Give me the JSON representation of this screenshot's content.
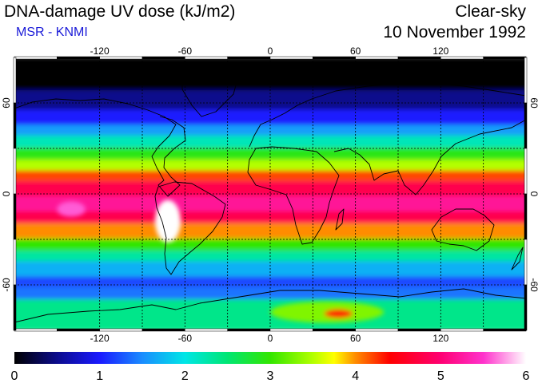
{
  "header": {
    "title": "DNA-damage UV dose (kJ/m2)",
    "source": "MSR - KNMI",
    "condition": "Clear-sky",
    "date": "10 November 1992"
  },
  "map": {
    "projection": "equirectangular",
    "lon_range": [
      -180,
      180
    ],
    "lat_range": [
      -90,
      90
    ],
    "lon_ticks": [
      "-120",
      "-60",
      "0",
      "60",
      "120"
    ],
    "lat_ticks": [
      "60",
      "0",
      "-60"
    ],
    "right_lat_ticks": [
      "60",
      "0",
      "-60"
    ],
    "gridlines": "dashed",
    "gridline_lats": [
      60,
      30,
      0,
      -30,
      -60
    ],
    "gridline_lons": [
      -120,
      -90,
      -60,
      -30,
      0,
      30,
      60,
      90,
      120,
      150
    ],
    "bands": [
      {
        "lat_from": 90,
        "lat_to": 68,
        "value": 0.0
      },
      {
        "lat_from": 68,
        "lat_to": 55,
        "value": 0.5
      },
      {
        "lat_from": 55,
        "lat_to": 45,
        "value": 1.0
      },
      {
        "lat_from": 45,
        "lat_to": 38,
        "value": 1.6
      },
      {
        "lat_from": 38,
        "lat_to": 30,
        "value": 2.2
      },
      {
        "lat_from": 30,
        "lat_to": 22,
        "value": 2.9
      },
      {
        "lat_from": 22,
        "lat_to": 15,
        "value": 3.5
      },
      {
        "lat_from": 15,
        "lat_to": 8,
        "value": 4.2
      },
      {
        "lat_from": 8,
        "lat_to": -2,
        "value": 4.8
      },
      {
        "lat_from": -2,
        "lat_to": -12,
        "value": 5.2
      },
      {
        "lat_from": -12,
        "lat_to": -20,
        "value": 4.8
      },
      {
        "lat_from": -20,
        "lat_to": -30,
        "value": 4.0
      },
      {
        "lat_from": -30,
        "lat_to": -38,
        "value": 3.0
      },
      {
        "lat_from": -38,
        "lat_to": -45,
        "value": 2.3
      },
      {
        "lat_from": -45,
        "lat_to": -55,
        "value": 1.7
      },
      {
        "lat_from": -55,
        "lat_to": -62,
        "value": 1.2
      },
      {
        "lat_from": -62,
        "lat_to": -70,
        "value": 1.4
      },
      {
        "lat_from": -70,
        "lat_to": -90,
        "value": 2.4
      }
    ],
    "hotspots": [
      {
        "lon": -72,
        "lat": -18,
        "rx": 9,
        "ry": 14,
        "value": 6.0
      },
      {
        "lon": -140,
        "lat": -10,
        "rx": 10,
        "ry": 5,
        "value": 5.6
      },
      {
        "lon": 40,
        "lat": -78,
        "rx": 40,
        "ry": 7,
        "value": 3.3
      },
      {
        "lon": 48,
        "lat": -79,
        "rx": 10,
        "ry": 3,
        "value": 4.3
      }
    ]
  },
  "colorbar": {
    "min": 0,
    "max": 6,
    "tick_labels": [
      "0",
      "1",
      "2",
      "3",
      "4",
      "5",
      "6"
    ],
    "stops": [
      {
        "value": 0.0,
        "color": "#000000"
      },
      {
        "value": 0.5,
        "color": "#0b0b8c"
      },
      {
        "value": 1.0,
        "color": "#1a1aff"
      },
      {
        "value": 1.5,
        "color": "#1a8cff"
      },
      {
        "value": 2.0,
        "color": "#00e6e6"
      },
      {
        "value": 2.5,
        "color": "#00e673"
      },
      {
        "value": 3.0,
        "color": "#33e600"
      },
      {
        "value": 3.5,
        "color": "#b3ff00"
      },
      {
        "value": 3.75,
        "color": "#ffff00"
      },
      {
        "value": 4.0,
        "color": "#ff8c00"
      },
      {
        "value": 4.4,
        "color": "#ff0000"
      },
      {
        "value": 5.0,
        "color": "#ff0073"
      },
      {
        "value": 5.5,
        "color": "#ff33cc"
      },
      {
        "value": 6.0,
        "color": "#ffffff"
      }
    ]
  }
}
